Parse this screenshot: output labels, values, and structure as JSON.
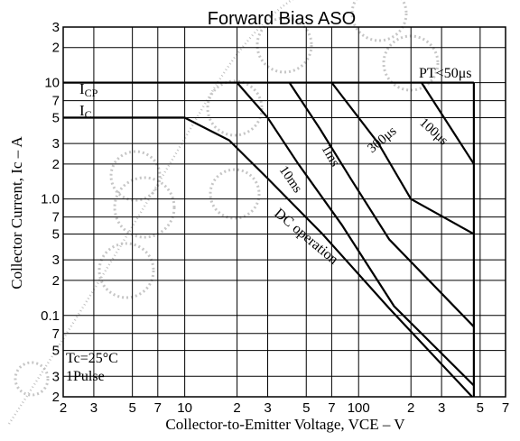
{
  "chart_data": {
    "type": "line",
    "title": "Forward Bias ASO",
    "xlabel": "Collector-to-Emitter Voltage, VCE  –  V",
    "ylabel": "Collector Current, Ic  –  A",
    "x_scale": "log",
    "y_scale": "log",
    "xlim": [
      2,
      700
    ],
    "ylim": [
      0.02,
      30
    ],
    "grid": true,
    "x_ticks": [
      {
        "v": 2,
        "t": "2"
      },
      {
        "v": 3,
        "t": "3"
      },
      {
        "v": 5,
        "t": "5"
      },
      {
        "v": 7,
        "t": "7"
      },
      {
        "v": 10,
        "t": "10"
      },
      {
        "v": 20,
        "t": "2"
      },
      {
        "v": 30,
        "t": "3"
      },
      {
        "v": 50,
        "t": "5"
      },
      {
        "v": 70,
        "t": "7"
      },
      {
        "v": 100,
        "t": "100"
      },
      {
        "v": 200,
        "t": "2"
      },
      {
        "v": 300,
        "t": "3"
      },
      {
        "v": 500,
        "t": "5"
      },
      {
        "v": 700,
        "t": "7"
      }
    ],
    "y_ticks": [
      {
        "v": 0.02,
        "t": "2"
      },
      {
        "v": 0.03,
        "t": "3"
      },
      {
        "v": 0.05,
        "t": "5"
      },
      {
        "v": 0.07,
        "t": "7"
      },
      {
        "v": 0.1,
        "t": "0.1"
      },
      {
        "v": 0.2,
        "t": "2"
      },
      {
        "v": 0.3,
        "t": "3"
      },
      {
        "v": 0.5,
        "t": "5"
      },
      {
        "v": 0.7,
        "t": "7"
      },
      {
        "v": 1,
        "t": "1.0"
      },
      {
        "v": 2,
        "t": "2"
      },
      {
        "v": 3,
        "t": "3"
      },
      {
        "v": 5,
        "t": "5"
      },
      {
        "v": 7,
        "t": "7"
      },
      {
        "v": 10,
        "t": "10"
      },
      {
        "v": 20,
        "t": "2"
      },
      {
        "v": 30,
        "t": "3"
      }
    ],
    "series": [
      {
        "name": "DC operation",
        "points": [
          [
            2,
            5
          ],
          [
            10,
            5
          ],
          [
            18,
            3.2
          ],
          [
            30,
            1.5
          ],
          [
            62,
            0.5
          ],
          [
            150,
            0.115
          ],
          [
            450,
            0.02
          ]
        ]
      },
      {
        "name": "10ms",
        "points": [
          [
            20,
            10
          ],
          [
            30,
            5
          ],
          [
            45,
            2
          ],
          [
            80,
            0.6
          ],
          [
            160,
            0.12
          ],
          [
            460,
            0.025
          ]
        ]
      },
      {
        "name": "1ms",
        "points": [
          [
            40,
            10
          ],
          [
            60,
            4
          ],
          [
            90,
            1.5
          ],
          [
            150,
            0.45
          ],
          [
            460,
            0.08
          ]
        ]
      },
      {
        "name": "300μs",
        "points": [
          [
            70,
            10
          ],
          [
            130,
            3
          ],
          [
            200,
            1
          ],
          [
            460,
            0.5
          ]
        ]
      },
      {
        "name": "100μs",
        "points": [
          [
            230,
            10
          ],
          [
            460,
            2
          ]
        ]
      }
    ],
    "boundaries": [
      {
        "name": "ICP",
        "label": "I",
        "sub": "CP",
        "value": 10,
        "x_from": 2,
        "x_to": 460
      },
      {
        "name": "IC",
        "label": "I",
        "sub": "C",
        "value": 5,
        "x_from": 2,
        "x_to": 10
      }
    ],
    "vertical_limit": {
      "x": 460,
      "y_from": 0.02,
      "y_to": 10
    },
    "annotations": [
      {
        "key": "pt",
        "text": "PT<50μs"
      },
      {
        "key": "dc",
        "text": "DC operation"
      },
      {
        "key": "ms10",
        "text": "10ms"
      },
      {
        "key": "ms1",
        "text": "1ms"
      },
      {
        "key": "us300",
        "text": "300μs"
      },
      {
        "key": "us100",
        "text": "100μs"
      },
      {
        "key": "tc",
        "text": "Tc=25°C"
      },
      {
        "key": "pulse",
        "text": "1Pulse"
      }
    ]
  }
}
